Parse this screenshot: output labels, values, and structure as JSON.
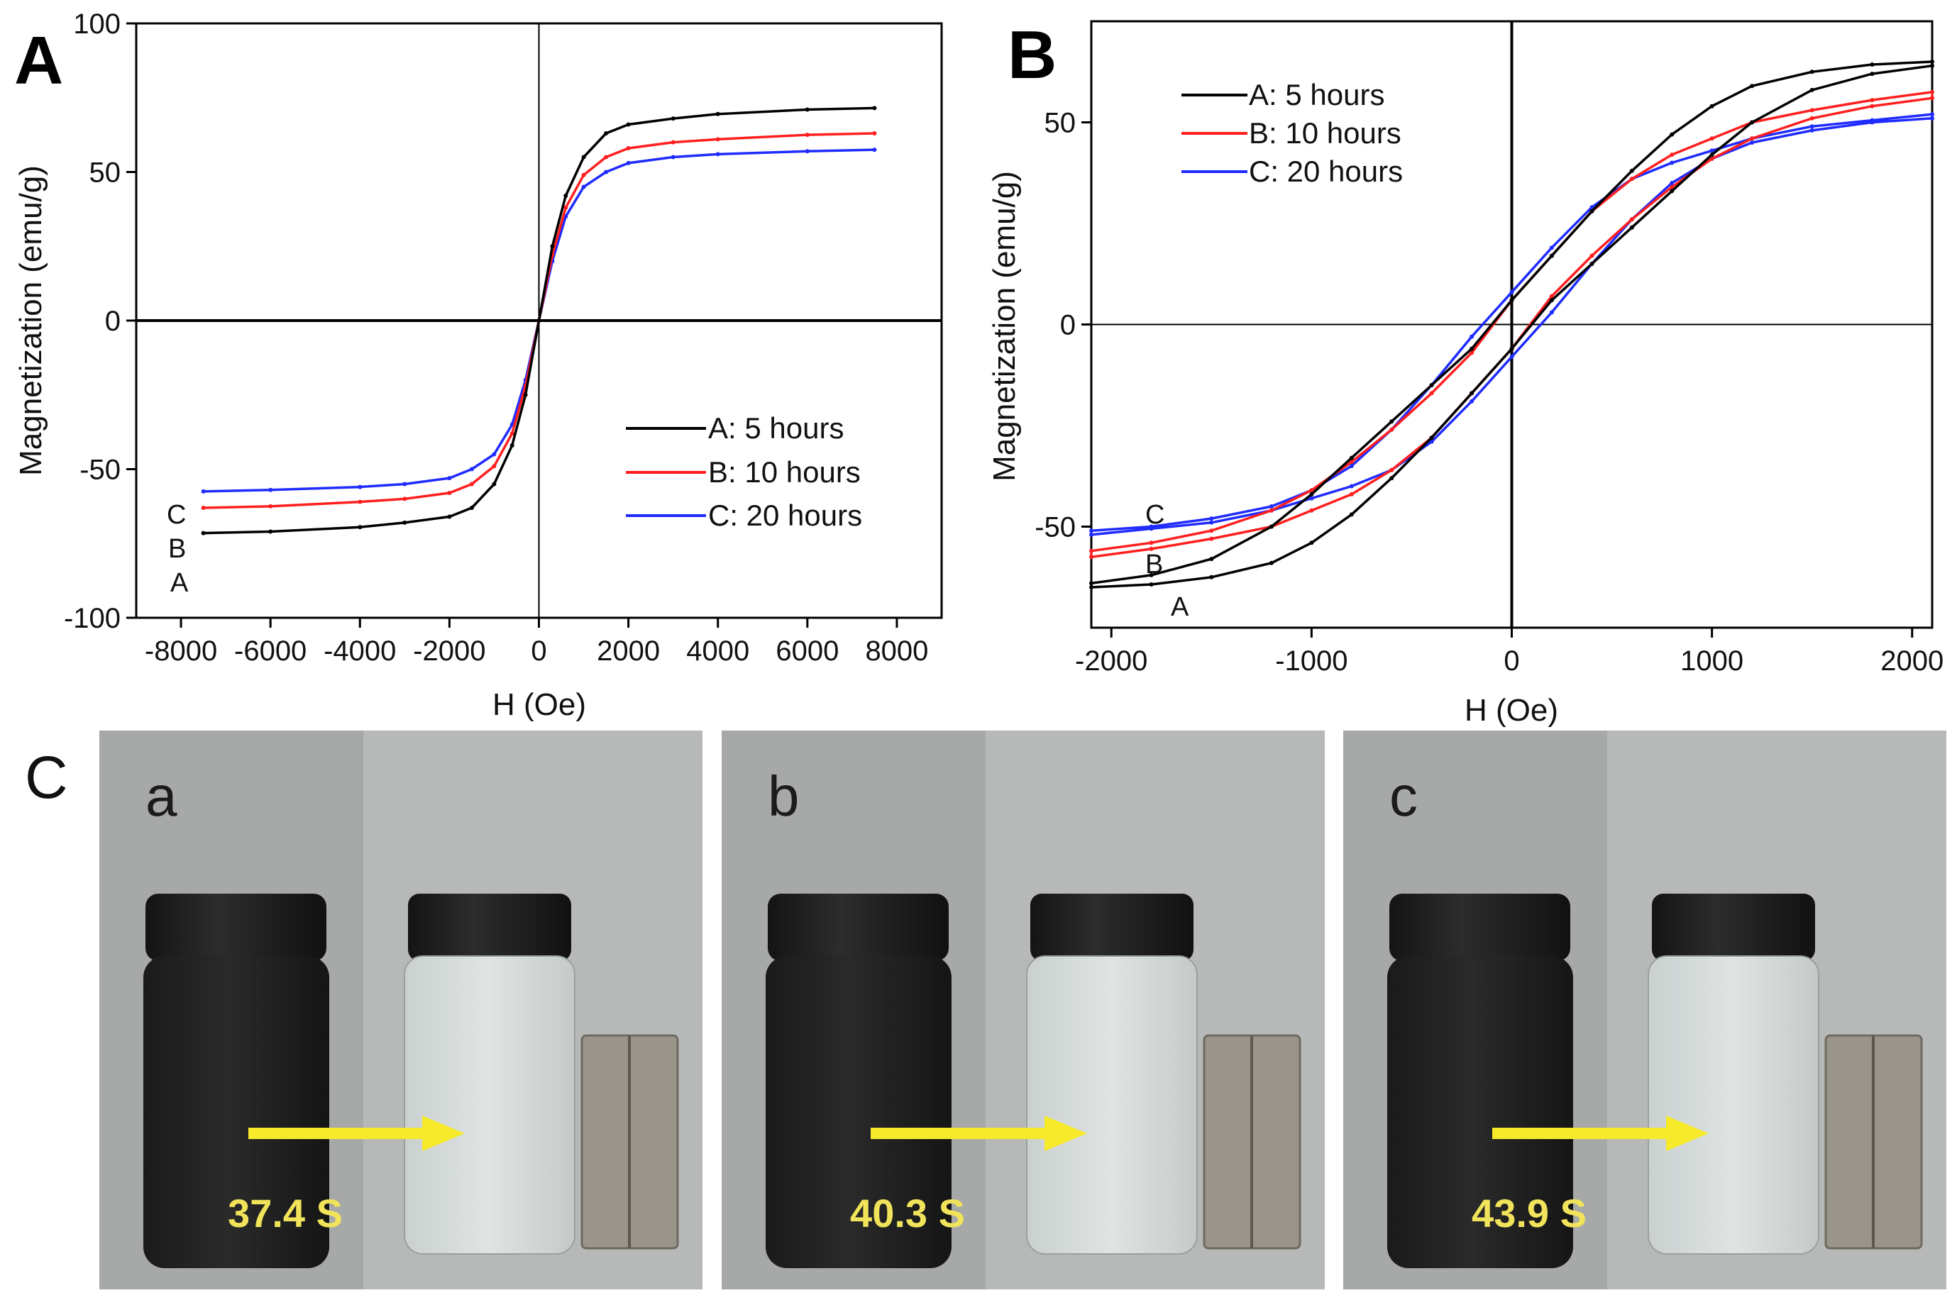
{
  "colors": {
    "A": "#000000",
    "B": "#ff1f1f",
    "C": "#1f2bff",
    "arrow": "#f6ea2a",
    "photo_bg": "#a7a9a8"
  },
  "chart_data": [
    {
      "panel": "A",
      "type": "line",
      "title": "",
      "xlabel": "H (Oe)",
      "ylabel": "Magnetization (emu/g)",
      "xlim": [
        -9000,
        9000
      ],
      "ylim": [
        -100,
        100
      ],
      "xticks": [
        -8000,
        -6000,
        -4000,
        -2000,
        0,
        2000,
        4000,
        6000,
        8000
      ],
      "yticks": [
        -100,
        -50,
        0,
        50,
        100
      ],
      "xtick_labels": [
        "-8000",
        "-6000",
        "-4000",
        "-2000",
        "0",
        "2000",
        "4000",
        "6000",
        "8000"
      ],
      "ytick_labels": [
        "-100",
        "-50",
        "0",
        "50",
        "100"
      ],
      "legend_position": "lower-right",
      "curve_tags": [
        "C",
        "B",
        "A"
      ],
      "series": [
        {
          "name": "A: 5 hours",
          "key": "A",
          "x": [
            -7500,
            -6000,
            -4000,
            -3000,
            -2000,
            -1500,
            -1000,
            -600,
            -300,
            0,
            300,
            600,
            1000,
            1500,
            2000,
            3000,
            4000,
            6000,
            7500
          ],
          "y": [
            -71.5,
            -71,
            -69.5,
            -68,
            -66,
            -63,
            -55,
            -42,
            -25,
            0,
            25,
            42,
            55,
            63,
            66,
            68,
            69.5,
            71,
            71.5
          ]
        },
        {
          "name": "B: 10 hours",
          "key": "B",
          "x": [
            -7500,
            -6000,
            -4000,
            -3000,
            -2000,
            -1500,
            -1000,
            -600,
            -300,
            0,
            300,
            600,
            1000,
            1500,
            2000,
            3000,
            4000,
            6000,
            7500
          ],
          "y": [
            -63,
            -62.5,
            -61,
            -60,
            -58,
            -55,
            -49,
            -38,
            -22,
            0,
            22,
            38,
            49,
            55,
            58,
            60,
            61,
            62.5,
            63
          ]
        },
        {
          "name": "C: 20 hours",
          "key": "C",
          "x": [
            -7500,
            -6000,
            -4000,
            -3000,
            -2000,
            -1500,
            -1000,
            -600,
            -300,
            0,
            300,
            600,
            1000,
            1500,
            2000,
            3000,
            4000,
            6000,
            7500
          ],
          "y": [
            -57.5,
            -57,
            -56,
            -55,
            -53,
            -50,
            -45,
            -35,
            -20,
            0,
            20,
            35,
            45,
            50,
            53,
            55,
            56,
            57,
            57.5
          ]
        }
      ]
    },
    {
      "panel": "B",
      "type": "line",
      "title": "",
      "xlabel": "H (Oe)",
      "ylabel": "Magnetization (emu/g)",
      "xlim": [
        -2100,
        2100
      ],
      "ylim": [
        -75,
        75
      ],
      "xticks": [
        -2000,
        -1000,
        0,
        1000,
        2000
      ],
      "yticks": [
        -50,
        0,
        50
      ],
      "xtick_labels": [
        "-2000",
        "-1000",
        "0",
        "1000",
        "2000"
      ],
      "ytick_labels": [
        "-50",
        "0",
        "50"
      ],
      "legend_position": "top-left",
      "curve_tags": [
        "C",
        "B",
        "A"
      ],
      "series": [
        {
          "name": "A: 5 hours",
          "key": "A",
          "hysteresis": true,
          "x": [
            -2100,
            -1800,
            -1500,
            -1200,
            -1000,
            -800,
            -600,
            -400,
            -200,
            0,
            200,
            400,
            600,
            800,
            1000,
            1200,
            1500,
            1800,
            2100
          ],
          "upper": [
            -64,
            -62,
            -58,
            -50,
            -42,
            -33,
            -24,
            -15,
            -6,
            6,
            17,
            28,
            38,
            47,
            54,
            59,
            62.5,
            64.3,
            65
          ],
          "lower": [
            -65,
            -64.3,
            -62.5,
            -59,
            -54,
            -47,
            -38,
            -28,
            -17,
            -6,
            6,
            15,
            24,
            33,
            42,
            50,
            58,
            62,
            64
          ]
        },
        {
          "name": "B: 10 hours",
          "key": "B",
          "hysteresis": true,
          "x": [
            -2100,
            -1800,
            -1500,
            -1200,
            -1000,
            -800,
            -600,
            -400,
            -200,
            0,
            200,
            400,
            600,
            800,
            1000,
            1200,
            1500,
            1800,
            2100
          ],
          "upper": [
            -56,
            -54,
            -51,
            -46,
            -41,
            -34,
            -26,
            -17,
            -7,
            6,
            17,
            28,
            36,
            42,
            46,
            50,
            53,
            55.5,
            57.5
          ],
          "lower": [
            -57.5,
            -55.5,
            -53,
            -50,
            -46,
            -42,
            -36,
            -28,
            -17,
            -6,
            7,
            17,
            26,
            34,
            41,
            46,
            51,
            54,
            56
          ]
        },
        {
          "name": "C: 20 hours",
          "key": "C",
          "hysteresis": true,
          "x": [
            -2100,
            -1800,
            -1500,
            -1200,
            -1000,
            -800,
            -600,
            -400,
            -200,
            0,
            200,
            400,
            600,
            800,
            1000,
            1200,
            1500,
            1800,
            2100
          ],
          "upper": [
            -51,
            -50,
            -48,
            -45,
            -41,
            -35,
            -26,
            -15,
            -3,
            8,
            19,
            29,
            36,
            40,
            43,
            46,
            49,
            50.5,
            52
          ],
          "lower": [
            -52,
            -50.5,
            -49,
            -46,
            -43,
            -40,
            -36,
            -29,
            -19,
            -8,
            3,
            15,
            26,
            35,
            41,
            45,
            48,
            50,
            51
          ]
        }
      ]
    }
  ],
  "panels": {
    "A": {
      "letter": "A"
    },
    "B": {
      "letter": "B"
    },
    "C": {
      "letter": "C",
      "photos": [
        {
          "label": "a",
          "time": "37.4 S"
        },
        {
          "label": "b",
          "time": "40.3 S"
        },
        {
          "label": "c",
          "time": "43.9 S"
        }
      ]
    }
  }
}
